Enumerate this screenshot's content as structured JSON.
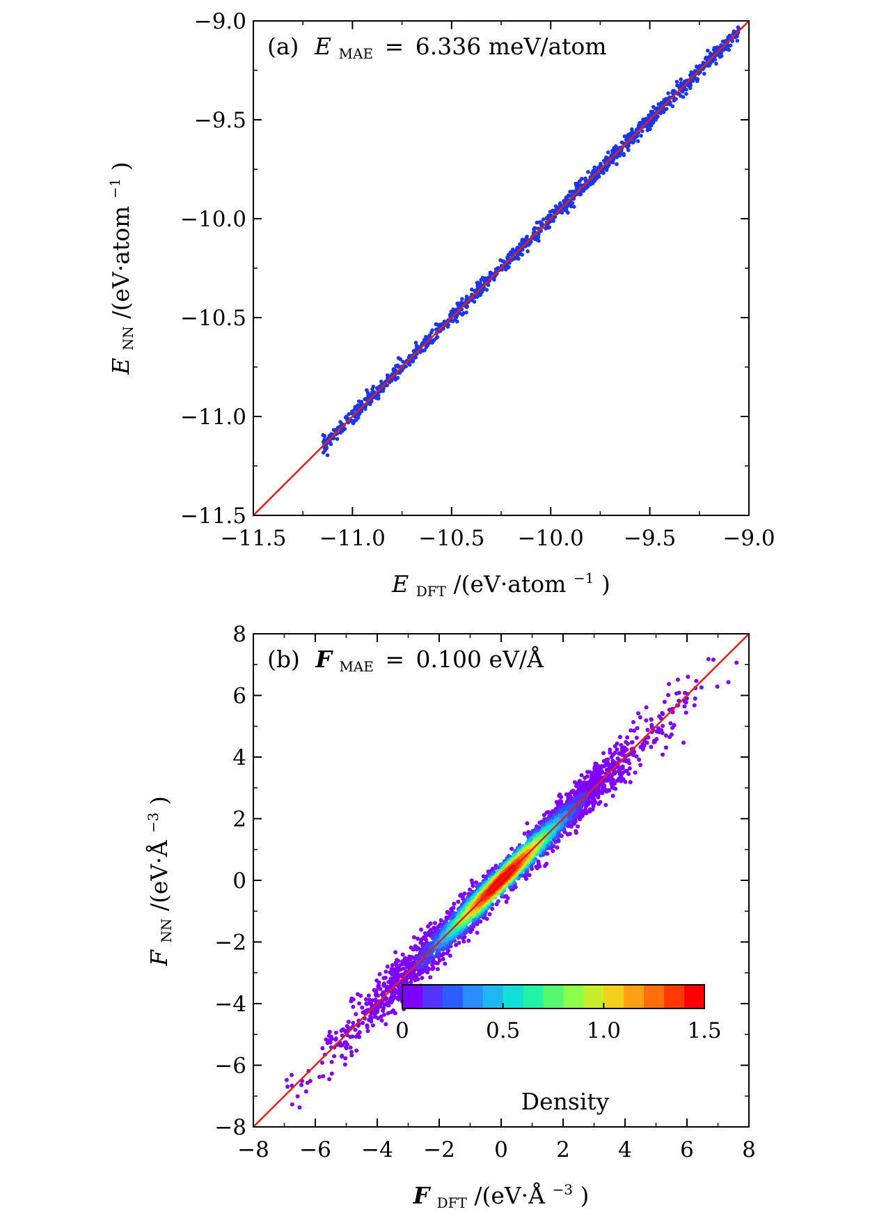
{
  "chart_data": [
    {
      "id": "a",
      "type": "scatter",
      "annotation": {
        "panel": "(a)",
        "symbol": "E",
        "subscript": "MAE",
        "equals": "=",
        "value": "6.336 meV/atom"
      },
      "xlabel": {
        "symbol": "E",
        "subscript": "DFT",
        "unit": "/(eV·atom",
        "exp": "−1",
        "close": ")"
      },
      "ylabel": {
        "symbol": "E",
        "subscript": "NN",
        "unit": "/(eV·atom",
        "exp": "−1",
        "close": ")"
      },
      "xlim": [
        -11.5,
        -9.0
      ],
      "ylim": [
        -11.5,
        -9.0
      ],
      "xticks": [
        -11.5,
        -11.0,
        -10.5,
        -10.0,
        -9.5,
        -9.0
      ],
      "yticks": [
        -11.5,
        -11.0,
        -10.5,
        -10.0,
        -9.5,
        -9.0
      ],
      "xtick_labels": [
        "−11.5",
        "−11.0",
        "−10.5",
        "−10.0",
        "−9.5",
        "−9.0"
      ],
      "ytick_labels": [
        "−11.5",
        "−11.0",
        "−10.5",
        "−10.0",
        "−9.5",
        "−9.0"
      ],
      "minor_step": 0.25,
      "points": {
        "color": "#1f35e6",
        "x_range": [
          -11.15,
          -9.05
        ],
        "count": 1200,
        "spread": 0.02
      },
      "reference_line": {
        "from": [
          -11.5,
          -11.5
        ],
        "to": [
          -9.0,
          -9.0
        ],
        "color": "#e0201a"
      }
    },
    {
      "id": "b",
      "type": "scatter",
      "annotation": {
        "panel": "(b)",
        "symbol": "F",
        "subscript": "MAE",
        "equals": "=",
        "value": "0.100 eV/Å"
      },
      "xlabel": {
        "symbol": "F",
        "subscript": "DFT",
        "unit": "/(eV·Å",
        "exp": "−3",
        "close": ")"
      },
      "ylabel": {
        "symbol": "F",
        "subscript": "NN",
        "unit": "/(eV·Å",
        "exp": "−3",
        "close": ")"
      },
      "xlim": [
        -8,
        8
      ],
      "ylim": [
        -8,
        8
      ],
      "xticks": [
        -8,
        -6,
        -4,
        -2,
        0,
        2,
        4,
        6,
        8
      ],
      "yticks": [
        -8,
        -6,
        -4,
        -2,
        0,
        2,
        4,
        6,
        8
      ],
      "xtick_labels": [
        "−8",
        "−6",
        "−4",
        "−2",
        "0",
        "2",
        "4",
        "6",
        "8"
      ],
      "ytick_labels": [
        "−8",
        "−6",
        "−4",
        "−2",
        "0",
        "2",
        "4",
        "6",
        "8"
      ],
      "minor_step": 1,
      "points": {
        "colormap": "rainbow",
        "x_sigma": 2.3,
        "spread_sigma": 0.25,
        "count": 3200
      },
      "reference_line": {
        "from": [
          -8,
          -8
        ],
        "to": [
          8,
          8
        ],
        "color": "#e0201a"
      },
      "colorbar": {
        "label": "Density",
        "range": [
          0,
          1.5
        ],
        "ticks": [
          0,
          0.5,
          1.0,
          1.5
        ],
        "tick_labels": [
          "0",
          "0.5",
          "1.0",
          "1.5"
        ],
        "colors": [
          "#7f00ff",
          "#5533ff",
          "#2a5cff",
          "#2b8cff",
          "#1fb7f0",
          "#12dfd8",
          "#20f2a6",
          "#55f870",
          "#8cff4a",
          "#c6ee2d",
          "#f4d01c",
          "#ffa014",
          "#ff6e0c",
          "#ff3806",
          "#ff0000"
        ]
      }
    }
  ]
}
